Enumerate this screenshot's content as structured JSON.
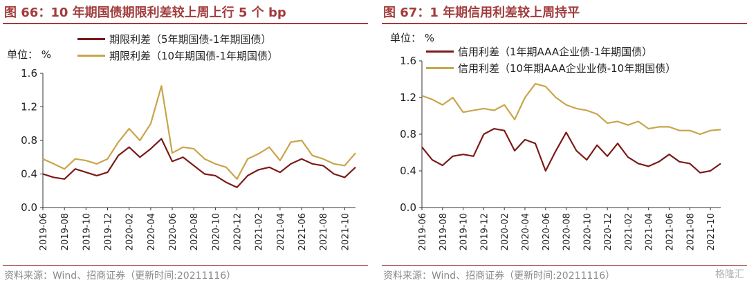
{
  "chart_data": [
    {
      "type": "line",
      "title": "图 66：10 年期国债期限利差较上周上行 5 个 bp",
      "unit_label": "单位：  %",
      "ylim": [
        0,
        1.6
      ],
      "yticks": [
        "1.6",
        "1.2",
        "0.8",
        "0.4",
        "0.0"
      ],
      "ytick_values": [
        1.6,
        1.2,
        0.8,
        0.4,
        0.0
      ],
      "xlim": [
        "2019-06",
        "2021-11"
      ],
      "xticks": [
        "2019-06",
        "2019-08",
        "2019-10",
        "2019-12",
        "2020-02",
        "2020-04",
        "2020-06",
        "2020-08",
        "2020-10",
        "2020-12",
        "2021-02",
        "2021-04",
        "2021-06",
        "2021-08",
        "2021-10"
      ],
      "x": [
        "2019-06",
        "2019-07",
        "2019-08",
        "2019-09",
        "2019-10",
        "2019-11",
        "2019-12",
        "2020-01",
        "2020-02",
        "2020-03",
        "2020-04",
        "2020-05",
        "2020-06",
        "2020-07",
        "2020-08",
        "2020-09",
        "2020-10",
        "2020-11",
        "2020-12",
        "2021-01",
        "2021-02",
        "2021-03",
        "2021-04",
        "2021-05",
        "2021-06",
        "2021-07",
        "2021-08",
        "2021-09",
        "2021-10",
        "2021-11"
      ],
      "series": [
        {
          "name": "期限利差（5年期国债-1年期国债）",
          "color": "#7b1a1a",
          "values": [
            0.4,
            0.36,
            0.34,
            0.46,
            0.42,
            0.38,
            0.42,
            0.62,
            0.72,
            0.6,
            0.7,
            0.82,
            0.55,
            0.6,
            0.5,
            0.4,
            0.38,
            0.3,
            0.24,
            0.38,
            0.45,
            0.48,
            0.42,
            0.52,
            0.58,
            0.52,
            0.5,
            0.4,
            0.36,
            0.48
          ]
        },
        {
          "name": "期限利差（10年期国债-1年期国债）",
          "color": "#c9a449",
          "values": [
            0.58,
            0.52,
            0.46,
            0.58,
            0.56,
            0.52,
            0.58,
            0.78,
            0.94,
            0.8,
            1.0,
            1.45,
            0.65,
            0.72,
            0.7,
            0.58,
            0.52,
            0.48,
            0.34,
            0.58,
            0.64,
            0.72,
            0.56,
            0.78,
            0.8,
            0.62,
            0.58,
            0.52,
            0.5,
            0.65
          ]
        }
      ],
      "legend_position": "top-right",
      "source": "资料来源：Wind、招商证券（更新时间:20211116）"
    },
    {
      "type": "line",
      "title": "图 67：1 年期信用利差较上周持平",
      "unit_label": "单位：  %",
      "ylim": [
        0,
        1.6
      ],
      "yticks": [
        "1.6",
        "1.2",
        "0.8",
        "0.4",
        "0.0"
      ],
      "ytick_values": [
        1.6,
        1.2,
        0.8,
        0.4,
        0.0
      ],
      "xlim": [
        "2019-06",
        "2021-11"
      ],
      "xticks": [
        "2019-06",
        "2019-08",
        "2019-10",
        "2019-12",
        "2020-02",
        "2020-04",
        "2020-06",
        "2020-08",
        "2020-10",
        "2020-12",
        "2021-02",
        "2021-04",
        "2021-06",
        "2021-08",
        "2021-10"
      ],
      "x": [
        "2019-06",
        "2019-07",
        "2019-08",
        "2019-09",
        "2019-10",
        "2019-11",
        "2019-12",
        "2020-01",
        "2020-02",
        "2020-03",
        "2020-04",
        "2020-05",
        "2020-06",
        "2020-07",
        "2020-08",
        "2020-09",
        "2020-10",
        "2020-11",
        "2020-12",
        "2021-01",
        "2021-02",
        "2021-03",
        "2021-04",
        "2021-05",
        "2021-06",
        "2021-07",
        "2021-08",
        "2021-09",
        "2021-10",
        "2021-11"
      ],
      "series": [
        {
          "name": "信用利差（1年期AAA企业债-1年期国债）",
          "color": "#7b1a1a",
          "values": [
            0.66,
            0.52,
            0.46,
            0.56,
            0.58,
            0.56,
            0.8,
            0.86,
            0.84,
            0.62,
            0.74,
            0.7,
            0.4,
            0.62,
            0.82,
            0.62,
            0.52,
            0.68,
            0.56,
            0.7,
            0.55,
            0.48,
            0.45,
            0.5,
            0.58,
            0.5,
            0.48,
            0.38,
            0.4,
            0.48
          ]
        },
        {
          "name": "信用利差（10年期AAA企业业债-10年期国债）",
          "color": "#c9a449",
          "values": [
            1.22,
            1.18,
            1.12,
            1.2,
            1.04,
            1.06,
            1.08,
            1.06,
            1.12,
            0.96,
            1.2,
            1.35,
            1.32,
            1.2,
            1.12,
            1.08,
            1.06,
            1.02,
            0.92,
            0.94,
            0.9,
            0.94,
            0.86,
            0.88,
            0.88,
            0.84,
            0.84,
            0.8,
            0.84,
            0.85
          ]
        }
      ],
      "legend_position": "top-right",
      "source": "资料来源：Wind、招商证券（更新时间:20211116）"
    }
  ],
  "watermark": "格隆汇"
}
